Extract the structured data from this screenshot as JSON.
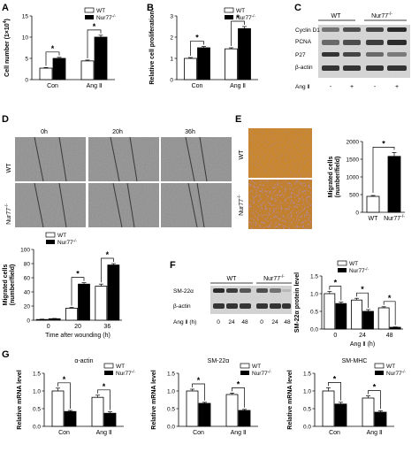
{
  "legend": {
    "wt": "WT",
    "ko": "Nur77",
    "ko_sup": "-/-"
  },
  "sig": "*",
  "panels": {
    "A": {
      "label": "A"
    },
    "B": {
      "label": "B"
    },
    "C": {
      "label": "C",
      "wt": "WT",
      "ko": "Nur77",
      "ko_sup": "-/-",
      "bands": [
        "Cyclin D1",
        "PCNA",
        "P27",
        "β-actin"
      ],
      "ang_label": "Ang Ⅱ",
      "ang_marks": [
        "-",
        "+",
        "-",
        "+"
      ]
    },
    "D": {
      "label": "D",
      "times": [
        "0h",
        "20h",
        "36h"
      ],
      "row_wt": "WT",
      "row_ko": "Nur77",
      "row_ko_sup": "-/-"
    },
    "E": {
      "label": "E",
      "row_wt": "WT",
      "row_ko": "Nur77",
      "row_ko_sup": "-/-",
      "bar_wt": "WT",
      "bar_ko": "Nur77",
      "bar_ko_sup": "-/-"
    },
    "F": {
      "label": "F",
      "wt": "WT",
      "ko": "Nur77",
      "ko_sup": "-/-",
      "bands": [
        "SM-22α",
        "β-actin"
      ],
      "ang_label": "Ang Ⅱ (h)",
      "times": [
        "0",
        "24",
        "48",
        "0",
        "24",
        "48"
      ]
    },
    "G": {
      "label": "G"
    }
  },
  "chart_data": [
    {
      "id": "A",
      "type": "bar",
      "categories": [
        "Con",
        "Ang Ⅱ"
      ],
      "series": [
        {
          "name": "WT",
          "values": [
            2.7,
            4.4
          ],
          "errors": [
            0.15,
            0.2
          ]
        },
        {
          "name": "Nur77-/-",
          "values": [
            5.0,
            10.0
          ],
          "errors": [
            0.25,
            0.45
          ]
        }
      ],
      "ylabel": "Cell number (1×10",
      "ylabel_sup": "4",
      "ylabel_end": ")",
      "ylim": [
        0,
        15
      ],
      "yticks": [
        "0",
        "5",
        "10",
        "15"
      ]
    },
    {
      "id": "B",
      "type": "bar",
      "categories": [
        "Con",
        "Ang Ⅱ"
      ],
      "series": [
        {
          "name": "WT",
          "values": [
            1.0,
            1.45
          ],
          "errors": [
            0.04,
            0.05
          ]
        },
        {
          "name": "Nur77-/-",
          "values": [
            1.5,
            2.4
          ],
          "errors": [
            0.06,
            0.1
          ]
        }
      ],
      "ylabel": "Relative cell proliferation",
      "ylim": [
        0,
        3
      ],
      "yticks": [
        "0",
        "1",
        "2",
        "3"
      ]
    },
    {
      "id": "D",
      "type": "bar",
      "categories": [
        "0",
        "20",
        "36"
      ],
      "series": [
        {
          "name": "WT",
          "values": [
            1,
            17,
            48
          ],
          "errors": [
            0.5,
            1.2,
            3
          ]
        },
        {
          "name": "Nur77-/-",
          "values": [
            2,
            51,
            78
          ],
          "errors": [
            0.5,
            2,
            2
          ]
        }
      ],
      "ylabel": "Migrated cells",
      "ylabel2": "(number/field)",
      "xlabel": "Time after wounding (h)",
      "ylim": [
        0,
        100
      ],
      "yticks": [
        "0",
        "20",
        "40",
        "60",
        "80",
        "100"
      ]
    },
    {
      "id": "E",
      "type": "bar",
      "categories": [
        "WT",
        "Nur77-/-"
      ],
      "series": [
        {
          "name": "",
          "values": [
            450,
            1580
          ],
          "errors": [
            25,
            110
          ]
        }
      ],
      "ylabel": "Migrated cells",
      "ylabel2": "(number/field)",
      "ylim": [
        0,
        2000
      ],
      "yticks": [
        "0",
        "500",
        "1000",
        "1500",
        "2000"
      ]
    },
    {
      "id": "F",
      "type": "bar",
      "categories": [
        "0",
        "24",
        "48"
      ],
      "series": [
        {
          "name": "WT",
          "values": [
            1.0,
            0.82,
            0.6
          ],
          "errors": [
            0.06,
            0.05,
            0.03
          ]
        },
        {
          "name": "Nur77-/-",
          "values": [
            0.72,
            0.5,
            0.05
          ],
          "errors": [
            0.04,
            0.05,
            0.01
          ]
        }
      ],
      "ylabel": "SM-22α protein level",
      "xlabel": "Ang Ⅱ (h)",
      "ylim": [
        0,
        1.5
      ],
      "yticks": [
        "0.0",
        "0.5",
        "1.0",
        "1.5"
      ]
    },
    {
      "id": "G1",
      "type": "bar",
      "title": "α-actin",
      "categories": [
        "Con",
        "Ang Ⅱ"
      ],
      "series": [
        {
          "name": "WT",
          "values": [
            1.0,
            0.82
          ],
          "errors": [
            0.08,
            0.06
          ]
        },
        {
          "name": "Nur77-/-",
          "values": [
            0.42,
            0.37
          ],
          "errors": [
            0.03,
            0.04
          ]
        }
      ],
      "ylabel": "Relative mRNA level",
      "ylim": [
        0,
        1.5
      ],
      "yticks": [
        "0.0",
        "0.5",
        "1.0",
        "1.5"
      ]
    },
    {
      "id": "G2",
      "type": "bar",
      "title": "SM-22α",
      "categories": [
        "Con",
        "Ang Ⅱ"
      ],
      "series": [
        {
          "name": "WT",
          "values": [
            1.0,
            0.9
          ],
          "errors": [
            0.05,
            0.04
          ]
        },
        {
          "name": "Nur77-/-",
          "values": [
            0.65,
            0.45
          ],
          "errors": [
            0.03,
            0.03
          ]
        }
      ],
      "ylabel": "Relative mRNA level",
      "ylim": [
        0,
        1.5
      ],
      "yticks": [
        "0.0",
        "0.5",
        "1.0",
        "1.5"
      ]
    },
    {
      "id": "G3",
      "type": "bar",
      "title": "SM-MHC",
      "categories": [
        "Con",
        "Ang Ⅱ"
      ],
      "series": [
        {
          "name": "WT",
          "values": [
            1.0,
            0.8
          ],
          "errors": [
            0.09,
            0.06
          ]
        },
        {
          "name": "Nur77-/-",
          "values": [
            0.63,
            0.4
          ],
          "errors": [
            0.05,
            0.04
          ]
        }
      ],
      "ylabel": "Relative mRNA level",
      "ylim": [
        0,
        1.5
      ],
      "yticks": [
        "0.0",
        "0.5",
        "1.0",
        "1.5"
      ]
    }
  ]
}
